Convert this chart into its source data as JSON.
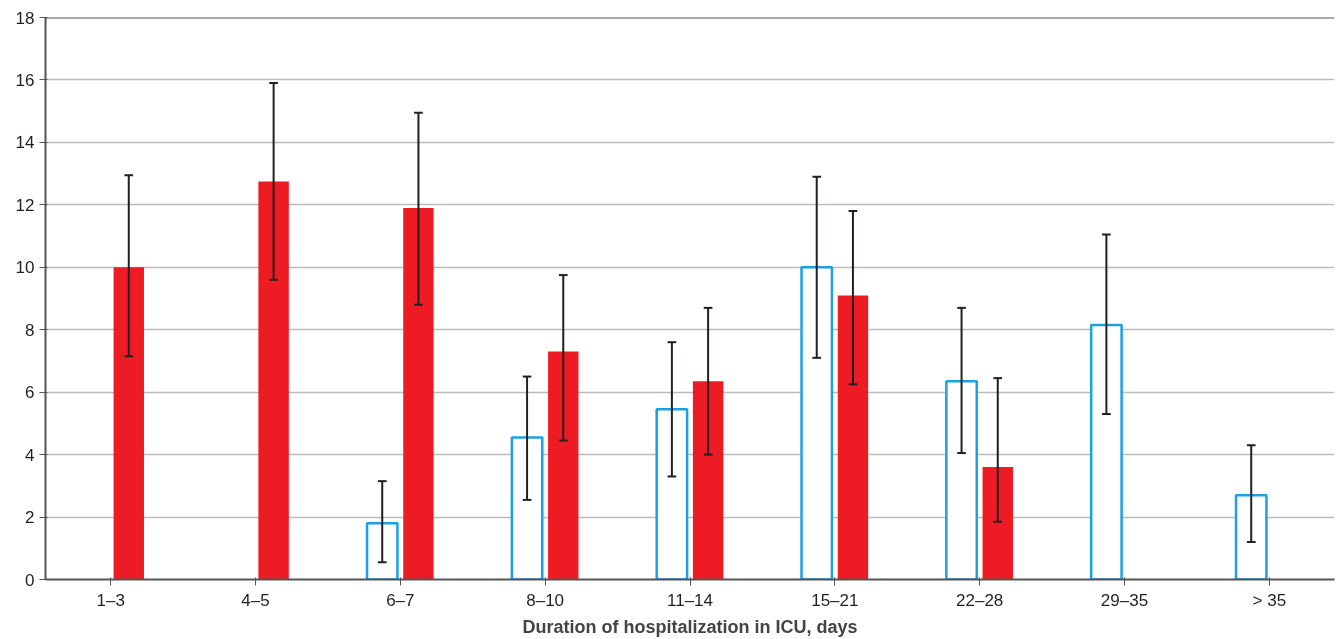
{
  "chart_data": {
    "type": "bar",
    "xlabel": "Duration of hospitalization in ICU, days",
    "categories": [
      "1–3",
      "4–5",
      "6–7",
      "8–10",
      "11–14",
      "15–21",
      "22–28",
      "29–35",
      "> 35"
    ],
    "series": [
      {
        "color": "#1ba1e2",
        "values": [
          null,
          null,
          1.8,
          4.55,
          5.45,
          10.0,
          6.35,
          8.15,
          2.7
        ],
        "errors": [
          null,
          null,
          [
            0.55,
            3.15
          ],
          [
            2.55,
            6.5
          ],
          [
            3.3,
            7.6
          ],
          [
            7.1,
            12.9
          ],
          [
            4.05,
            8.7
          ],
          [
            5.3,
            11.05
          ],
          [
            1.2,
            4.3
          ]
        ]
      },
      {
        "color": "#ed1c24",
        "values": [
          10.0,
          12.75,
          11.9,
          7.3,
          6.35,
          9.1,
          3.6,
          null,
          null
        ],
        "errors": [
          [
            7.15,
            12.95
          ],
          [
            9.6,
            15.9
          ],
          [
            8.8,
            14.95
          ],
          [
            4.45,
            9.75
          ],
          [
            4.0,
            8.7
          ],
          [
            6.25,
            11.8
          ],
          [
            1.85,
            6.45
          ],
          null,
          null
        ]
      }
    ],
    "ylim": [
      0,
      18
    ],
    "yticks": [
      0,
      2,
      4,
      6,
      8,
      10,
      12,
      14,
      16,
      18
    ],
    "grid": "y"
  }
}
